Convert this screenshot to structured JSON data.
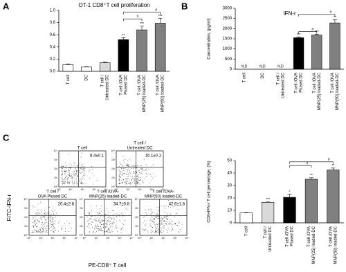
{
  "panel_letters": [
    "A",
    "B",
    "C"
  ],
  "chart_data": [
    {
      "type": "bar",
      "title": "OT-1 CD8⁺T cell proliferation",
      "categories": [
        [
          "T cell"
        ],
        [
          "DC"
        ],
        [
          "T cell /",
          "Untreated DC"
        ],
        [
          "T cell /OVA",
          "Plused DC"
        ],
        [
          "T cell /OVA",
          "MNP(25) loaded-DC"
        ],
        [
          "T cell /OVA",
          "MNP(50) loaded-DC"
        ]
      ],
      "values": [
        0.11,
        0.07,
        0.14,
        0.52,
        0.68,
        0.79
      ],
      "errors": [
        0.01,
        0.005,
        0.01,
        0.03,
        0.06,
        0.08
      ],
      "colors": [
        "#ffffff",
        "#ffffff",
        "#d9d9d9",
        "#000000",
        "#808080",
        "#808080"
      ],
      "significance": [
        null,
        null,
        null,
        "**",
        "***",
        "***"
      ],
      "brackets": [
        {
          "from": 3,
          "to": 4,
          "label": "#",
          "y": 0.86
        },
        {
          "from": 3,
          "to": 5,
          "label": "#",
          "y": 0.97
        }
      ],
      "ylim": [
        0,
        1.0
      ],
      "yticks": [
        {
          "value": 0,
          "label": "0.0"
        },
        0.2,
        0.4,
        0.6,
        0.8,
        {
          "value": 1,
          "label": "1.0"
        }
      ]
    },
    {
      "type": "bar",
      "title": "IFN-r",
      "y_label": "Concentration, (pg/ml)",
      "categories": [
        [
          "T cell"
        ],
        [
          "DC"
        ],
        [
          "T cell /",
          "Untreated DC"
        ],
        [
          "T cell /OVA",
          "Plused DC"
        ],
        [
          "T cell /OVA",
          "MNP(25) loaded-DC"
        ],
        [
          "T cell /OVA",
          "MNP(50) loaded-DC"
        ]
      ],
      "values": [
        null,
        null,
        null,
        1550,
        1680,
        2280
      ],
      "value_labels": [
        "N.D",
        "N.D",
        "N.D",
        null,
        null,
        null
      ],
      "errors": [
        null,
        null,
        null,
        30,
        40,
        150
      ],
      "colors": [
        "#ffffff",
        "#ffffff",
        "#d9d9d9",
        "#000000",
        "#808080",
        "#808080"
      ],
      "significance": [
        null,
        null,
        null,
        "***",
        "***",
        "**"
      ],
      "brackets": [
        {
          "from": 3,
          "to": 4,
          "label": "#",
          "y": 1850
        },
        {
          "from": 3,
          "to": 5,
          "label": "#",
          "y": 2700
        }
      ],
      "ylim": [
        0,
        3000
      ],
      "yticks": [
        0,
        500,
        1000,
        1500,
        2000,
        2500,
        3000
      ]
    },
    {
      "type": "bar",
      "y_label": "CD8+IFN-r T cell percentage, (%)",
      "categories": [
        [
          "T cell"
        ],
        [
          "T cell /",
          "Untreated DC"
        ],
        [
          "T cell /OVA",
          "Plused DC"
        ],
        [
          "T cell /OVA",
          "MNP(25) loaded-DC"
        ],
        [
          "T cell /OVA",
          "MNP(50) loaded-DC"
        ]
      ],
      "values": [
        8,
        16.5,
        20.5,
        35,
        42.5
      ],
      "errors": [
        0.3,
        0.3,
        2.5,
        1.2,
        1.5
      ],
      "colors": [
        "#ffffff",
        "#d9d9d9",
        "#000000",
        "#808080",
        "#808080"
      ],
      "significance": [
        null,
        "***",
        "*",
        "**",
        "**"
      ],
      "brackets": [
        {
          "from": 2,
          "to": 3,
          "label": "#",
          "y": 46
        },
        {
          "from": 2,
          "to": 4,
          "label": "#",
          "y": 49
        }
      ],
      "ylim": [
        0,
        50
      ],
      "yticks": [
        0,
        10,
        20,
        30,
        40,
        50
      ]
    }
  ],
  "flow_cytometry": {
    "y_label": "FITC-IFN-r",
    "x_label": "PE-CD8⁺ T cell",
    "tick_labels": [
      "10⁰",
      "10¹",
      "10²",
      "10³",
      "10⁴"
    ],
    "plots": [
      {
        "title": [
          "T cell"
        ],
        "percentage": "8.4±0.1"
      },
      {
        "title": [
          "T cell /",
          "Untreated DC"
        ],
        "percentage": "16.1±0.1"
      },
      {
        "title": [
          "T cell /",
          "OVA Plused DC"
        ],
        "percentage": "20.4±2.8"
      },
      {
        "title": [
          "T cell /OVA-",
          "MNP(25) loaded-DC"
        ],
        "percentage": "34.7±0.8"
      },
      {
        "title": [
          "T cell /OVA-",
          "MNP(50) loaded-DC"
        ],
        "percentage": "42.6±1.8"
      }
    ]
  }
}
